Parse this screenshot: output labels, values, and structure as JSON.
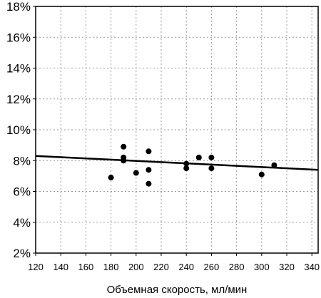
{
  "chart_data": {
    "type": "scatter",
    "title": "",
    "xlabel": "Объемная скорость, мл/мин",
    "ylabel": "",
    "xlim": [
      120,
      345
    ],
    "ylim": [
      2,
      18
    ],
    "x_ticks": [
      120,
      140,
      160,
      180,
      200,
      220,
      240,
      260,
      280,
      300,
      320,
      340
    ],
    "y_ticks": [
      2,
      4,
      6,
      8,
      10,
      12,
      14,
      16,
      18
    ],
    "y_tick_labels": [
      "2%",
      "4%",
      "6%",
      "8%",
      "10%",
      "12%",
      "14%",
      "16%",
      "18%"
    ],
    "grid": true,
    "legend": "none",
    "points": [
      {
        "x": 180,
        "y": 6.9
      },
      {
        "x": 190,
        "y": 8.9
      },
      {
        "x": 190,
        "y": 8.2
      },
      {
        "x": 190,
        "y": 8.0
      },
      {
        "x": 200,
        "y": 7.2
      },
      {
        "x": 210,
        "y": 8.6
      },
      {
        "x": 210,
        "y": 7.4
      },
      {
        "x": 210,
        "y": 6.5
      },
      {
        "x": 240,
        "y": 7.8
      },
      {
        "x": 240,
        "y": 7.5
      },
      {
        "x": 250,
        "y": 8.2
      },
      {
        "x": 260,
        "y": 8.2
      },
      {
        "x": 260,
        "y": 7.5
      },
      {
        "x": 300,
        "y": 7.1
      },
      {
        "x": 310,
        "y": 7.7
      }
    ],
    "trendline": {
      "x": [
        120,
        345
      ],
      "y": [
        8.3,
        7.4
      ]
    },
    "colors": {
      "points": "#000000",
      "trendline": "#000000",
      "grid": "#9a9a9a"
    }
  }
}
